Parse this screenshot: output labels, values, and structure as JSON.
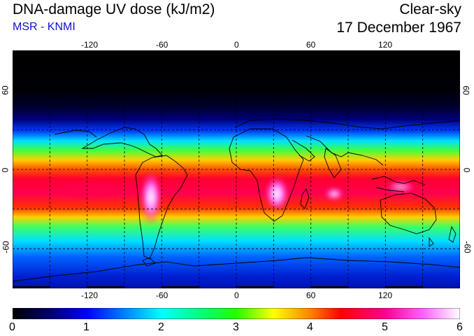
{
  "header": {
    "title": "DNA-damage UV dose (kJ/m2)",
    "source": "MSR - KNMI",
    "mode": "Clear-sky",
    "date": "17 December 1967"
  },
  "map": {
    "lon_ticks": [
      "-120",
      "-60",
      "0",
      "60",
      "120"
    ],
    "lat_ticks_left": [
      "60",
      "0",
      "-60"
    ],
    "lat_ticks_right": [
      "60",
      "0",
      "-60"
    ],
    "lon_range": [
      -180,
      180
    ],
    "lat_range": [
      -90,
      90
    ],
    "grid": true,
    "gridlines_lon": [
      -150,
      -120,
      -90,
      -60,
      -30,
      0,
      30,
      60,
      90,
      120,
      150
    ],
    "gridlines_lat": [
      -60,
      -30,
      0,
      30,
      60
    ]
  },
  "colorbar": {
    "labels": [
      "0",
      "1",
      "2",
      "3",
      "4",
      "5",
      "6"
    ],
    "min": 0,
    "max": 6,
    "stops": [
      {
        "v": 0.0,
        "color": "#000000"
      },
      {
        "v": 0.5,
        "color": "#00006e"
      },
      {
        "v": 1.0,
        "color": "#0000ff"
      },
      {
        "v": 1.5,
        "color": "#0080ff"
      },
      {
        "v": 2.0,
        "color": "#00ffff"
      },
      {
        "v": 2.5,
        "color": "#00ff80"
      },
      {
        "v": 3.0,
        "color": "#20ff00"
      },
      {
        "v": 3.5,
        "color": "#ffff00"
      },
      {
        "v": 4.0,
        "color": "#ff8000"
      },
      {
        "v": 4.4,
        "color": "#ff0000"
      },
      {
        "v": 5.0,
        "color": "#ff0090"
      },
      {
        "v": 5.5,
        "color": "#ff60ff"
      },
      {
        "v": 6.0,
        "color": "#ffffff"
      }
    ]
  }
}
